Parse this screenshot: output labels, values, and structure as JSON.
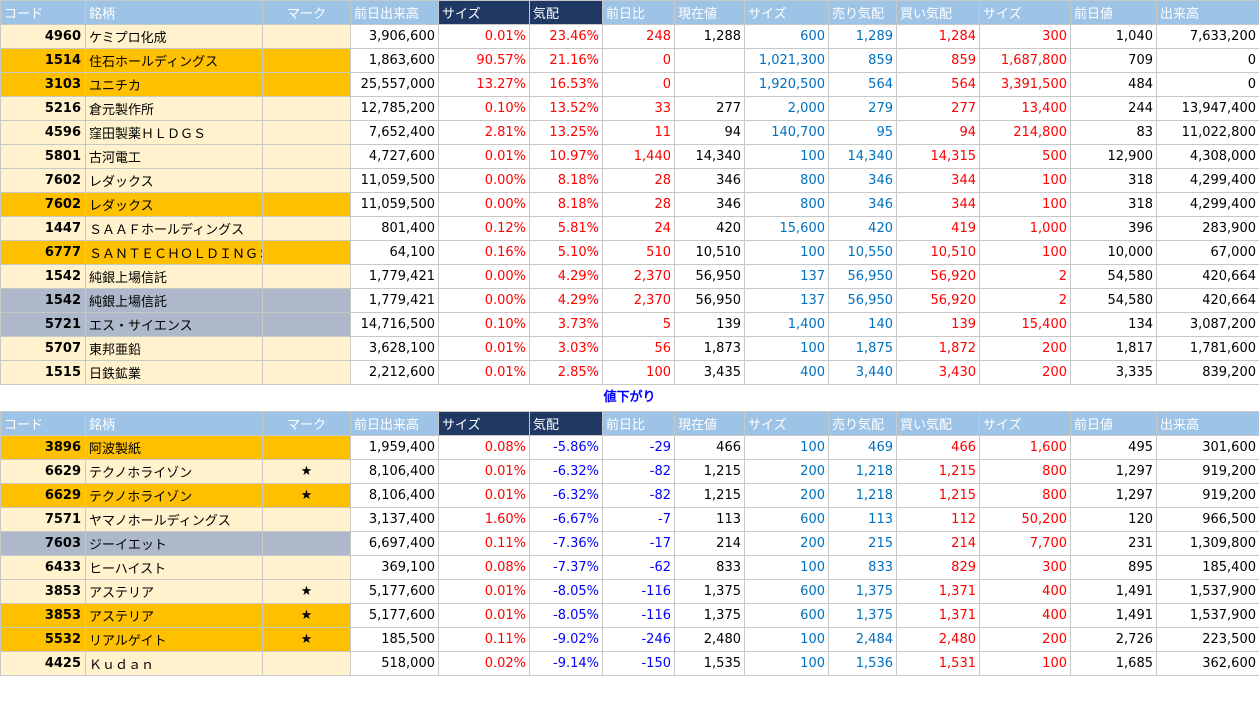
{
  "headers": [
    "コード",
    "銘柄",
    "マーク",
    "前日出来高",
    "サイズ",
    "気配",
    "前日比",
    "現在値",
    "サイズ",
    "売り気配",
    "買い気配",
    "サイズ",
    "前日値",
    "出来高"
  ],
  "section_label": "値下がり",
  "colors": {
    "cream": "#fff2cc",
    "orange": "#ffc000",
    "gray": "#adb9ca",
    "header_light": "#9dc3e6",
    "header_dark": "#1f3864",
    "red": "#ff0000",
    "blue": "#0070c0"
  },
  "gainers": [
    {
      "bg": "cream",
      "code": "4960",
      "name": "ケミプロ化成",
      "mark": "",
      "prev_volume": "3,906,600",
      "size_pct": "0.01%",
      "quote_pct": "23.46%",
      "change": "248",
      "price": "1,288",
      "size1": "600",
      "ask": "1,289",
      "bid": "1,284",
      "size2": "300",
      "prev_price": "1,040",
      "volume": "7,633,200"
    },
    {
      "bg": "orange",
      "code": "1514",
      "name": "住石ホールディングス",
      "mark": "",
      "prev_volume": "1,863,600",
      "size_pct": "90.57%",
      "quote_pct": "21.16%",
      "change": "0",
      "price": "",
      "size1": "1,021,300",
      "ask": "859",
      "bid": "859",
      "size2": "1,687,800",
      "prev_price": "709",
      "volume": "0"
    },
    {
      "bg": "orange",
      "code": "3103",
      "name": "ユニチカ",
      "mark": "",
      "prev_volume": "25,557,000",
      "size_pct": "13.27%",
      "quote_pct": "16.53%",
      "change": "0",
      "price": "",
      "size1": "1,920,500",
      "ask": "564",
      "bid": "564",
      "size2": "3,391,500",
      "prev_price": "484",
      "volume": "0"
    },
    {
      "bg": "cream",
      "code": "5216",
      "name": "倉元製作所",
      "mark": "",
      "prev_volume": "12,785,200",
      "size_pct": "0.10%",
      "quote_pct": "13.52%",
      "change": "33",
      "price": "277",
      "size1": "2,000",
      "ask": "279",
      "bid": "277",
      "size2": "13,400",
      "prev_price": "244",
      "volume": "13,947,400"
    },
    {
      "bg": "cream",
      "code": "4596",
      "name": "窪田製薬ＨＬＤＧＳ",
      "mark": "",
      "prev_volume": "7,652,400",
      "size_pct": "2.81%",
      "quote_pct": "13.25%",
      "change": "11",
      "price": "94",
      "size1": "140,700",
      "ask": "95",
      "bid": "94",
      "size2": "214,800",
      "prev_price": "83",
      "volume": "11,022,800"
    },
    {
      "bg": "cream",
      "code": "5801",
      "name": "古河電工",
      "mark": "",
      "prev_volume": "4,727,600",
      "size_pct": "0.01%",
      "quote_pct": "10.97%",
      "change": "1,440",
      "price": "14,340",
      "size1": "100",
      "ask": "14,340",
      "bid": "14,315",
      "size2": "500",
      "prev_price": "12,900",
      "volume": "4,308,000"
    },
    {
      "bg": "cream",
      "code": "7602",
      "name": "レダックス",
      "mark": "",
      "prev_volume": "11,059,500",
      "size_pct": "0.00%",
      "quote_pct": "8.18%",
      "change": "28",
      "price": "346",
      "size1": "800",
      "ask": "346",
      "bid": "344",
      "size2": "100",
      "prev_price": "318",
      "volume": "4,299,400"
    },
    {
      "bg": "orange",
      "code": "7602",
      "name": "レダックス",
      "mark": "",
      "prev_volume": "11,059,500",
      "size_pct": "0.00%",
      "quote_pct": "8.18%",
      "change": "28",
      "price": "346",
      "size1": "800",
      "ask": "346",
      "bid": "344",
      "size2": "100",
      "prev_price": "318",
      "volume": "4,299,400"
    },
    {
      "bg": "cream",
      "code": "1447",
      "name": "ＳＡＡＦホールディングス",
      "mark": "",
      "prev_volume": "801,400",
      "size_pct": "0.12%",
      "quote_pct": "5.81%",
      "change": "24",
      "price": "420",
      "size1": "15,600",
      "ask": "420",
      "bid": "419",
      "size2": "1,000",
      "prev_price": "396",
      "volume": "283,900"
    },
    {
      "bg": "orange",
      "code": "6777",
      "name": "ＳＡＮＴＥＣＨＯＬＤＩＮＧＳ",
      "mark": "",
      "prev_volume": "64,100",
      "size_pct": "0.16%",
      "quote_pct": "5.10%",
      "change": "510",
      "price": "10,510",
      "size1": "100",
      "ask": "10,550",
      "bid": "10,510",
      "size2": "100",
      "prev_price": "10,000",
      "volume": "67,000"
    },
    {
      "bg": "cream",
      "code": "1542",
      "name": "純銀上場信託",
      "mark": "",
      "prev_volume": "1,779,421",
      "size_pct": "0.00%",
      "quote_pct": "4.29%",
      "change": "2,370",
      "price": "56,950",
      "size1": "137",
      "ask": "56,950",
      "bid": "56,920",
      "size2": "2",
      "prev_price": "54,580",
      "volume": "420,664"
    },
    {
      "bg": "gray",
      "code": "1542",
      "name": "純銀上場信託",
      "mark": "",
      "prev_volume": "1,779,421",
      "size_pct": "0.00%",
      "quote_pct": "4.29%",
      "change": "2,370",
      "price": "56,950",
      "size1": "137",
      "ask": "56,950",
      "bid": "56,920",
      "size2": "2",
      "prev_price": "54,580",
      "volume": "420,664"
    },
    {
      "bg": "gray",
      "code": "5721",
      "name": "エス・サイエンス",
      "mark": "",
      "prev_volume": "14,716,500",
      "size_pct": "0.10%",
      "quote_pct": "3.73%",
      "change": "5",
      "price": "139",
      "size1": "1,400",
      "ask": "140",
      "bid": "139",
      "size2": "15,400",
      "prev_price": "134",
      "volume": "3,087,200"
    },
    {
      "bg": "cream",
      "code": "5707",
      "name": "東邦亜鉛",
      "mark": "",
      "prev_volume": "3,628,100",
      "size_pct": "0.01%",
      "quote_pct": "3.03%",
      "change": "56",
      "price": "1,873",
      "size1": "100",
      "ask": "1,875",
      "bid": "1,872",
      "size2": "200",
      "prev_price": "1,817",
      "volume": "1,781,600"
    },
    {
      "bg": "cream",
      "code": "1515",
      "name": "日鉄鉱業",
      "mark": "",
      "prev_volume": "2,212,600",
      "size_pct": "0.01%",
      "quote_pct": "2.85%",
      "change": "100",
      "price": "3,435",
      "size1": "400",
      "ask": "3,440",
      "bid": "3,430",
      "size2": "200",
      "prev_price": "3,335",
      "volume": "839,200"
    }
  ],
  "losers": [
    {
      "bg": "orange",
      "code": "3896",
      "name": "阿波製紙",
      "mark": "",
      "prev_volume": "1,959,400",
      "size_pct": "0.08%",
      "quote_pct": "-5.86%",
      "change": "-29",
      "price": "466",
      "size1": "100",
      "ask": "469",
      "bid": "466",
      "size2": "1,600",
      "prev_price": "495",
      "volume": "301,600"
    },
    {
      "bg": "cream",
      "code": "6629",
      "name": "テクノホライゾン",
      "mark": "★",
      "prev_volume": "8,106,400",
      "size_pct": "0.01%",
      "quote_pct": "-6.32%",
      "change": "-82",
      "price": "1,215",
      "size1": "200",
      "ask": "1,218",
      "bid": "1,215",
      "size2": "800",
      "prev_price": "1,297",
      "volume": "919,200"
    },
    {
      "bg": "orange",
      "code": "6629",
      "name": "テクノホライゾン",
      "mark": "★",
      "prev_volume": "8,106,400",
      "size_pct": "0.01%",
      "quote_pct": "-6.32%",
      "change": "-82",
      "price": "1,215",
      "size1": "200",
      "ask": "1,218",
      "bid": "1,215",
      "size2": "800",
      "prev_price": "1,297",
      "volume": "919,200"
    },
    {
      "bg": "cream",
      "code": "7571",
      "name": "ヤマノホールディングス",
      "mark": "",
      "prev_volume": "3,137,400",
      "size_pct": "1.60%",
      "quote_pct": "-6.67%",
      "change": "-7",
      "price": "113",
      "size1": "600",
      "ask": "113",
      "bid": "112",
      "size2": "50,200",
      "prev_price": "120",
      "volume": "966,500"
    },
    {
      "bg": "gray",
      "code": "7603",
      "name": "ジーイエット",
      "mark": "",
      "prev_volume": "6,697,400",
      "size_pct": "0.11%",
      "quote_pct": "-7.36%",
      "change": "-17",
      "price": "214",
      "size1": "200",
      "ask": "215",
      "bid": "214",
      "size2": "7,700",
      "prev_price": "231",
      "volume": "1,309,800"
    },
    {
      "bg": "cream",
      "code": "6433",
      "name": "ヒーハイスト",
      "mark": "",
      "prev_volume": "369,100",
      "size_pct": "0.08%",
      "quote_pct": "-7.37%",
      "change": "-62",
      "price": "833",
      "size1": "100",
      "ask": "833",
      "bid": "829",
      "size2": "300",
      "prev_price": "895",
      "volume": "185,400"
    },
    {
      "bg": "cream",
      "code": "3853",
      "name": "アステリア",
      "mark": "★",
      "prev_volume": "5,177,600",
      "size_pct": "0.01%",
      "quote_pct": "-8.05%",
      "change": "-116",
      "price": "1,375",
      "size1": "600",
      "ask": "1,375",
      "bid": "1,371",
      "size2": "400",
      "prev_price": "1,491",
      "volume": "1,537,900"
    },
    {
      "bg": "orange",
      "code": "3853",
      "name": "アステリア",
      "mark": "★",
      "prev_volume": "5,177,600",
      "size_pct": "0.01%",
      "quote_pct": "-8.05%",
      "change": "-116",
      "price": "1,375",
      "size1": "600",
      "ask": "1,375",
      "bid": "1,371",
      "size2": "400",
      "prev_price": "1,491",
      "volume": "1,537,900"
    },
    {
      "bg": "orange",
      "code": "5532",
      "name": "リアルゲイト",
      "mark": "★",
      "prev_volume": "185,500",
      "size_pct": "0.11%",
      "quote_pct": "-9.02%",
      "change": "-246",
      "price": "2,480",
      "size1": "100",
      "ask": "2,484",
      "bid": "2,480",
      "size2": "200",
      "prev_price": "2,726",
      "volume": "223,500"
    },
    {
      "bg": "cream",
      "code": "4425",
      "name": "Ｋｕｄａｎ",
      "mark": "",
      "prev_volume": "518,000",
      "size_pct": "0.02%",
      "quote_pct": "-9.14%",
      "change": "-150",
      "price": "1,535",
      "size1": "100",
      "ask": "1,536",
      "bid": "1,531",
      "size2": "100",
      "prev_price": "1,685",
      "volume": "362,600"
    }
  ]
}
